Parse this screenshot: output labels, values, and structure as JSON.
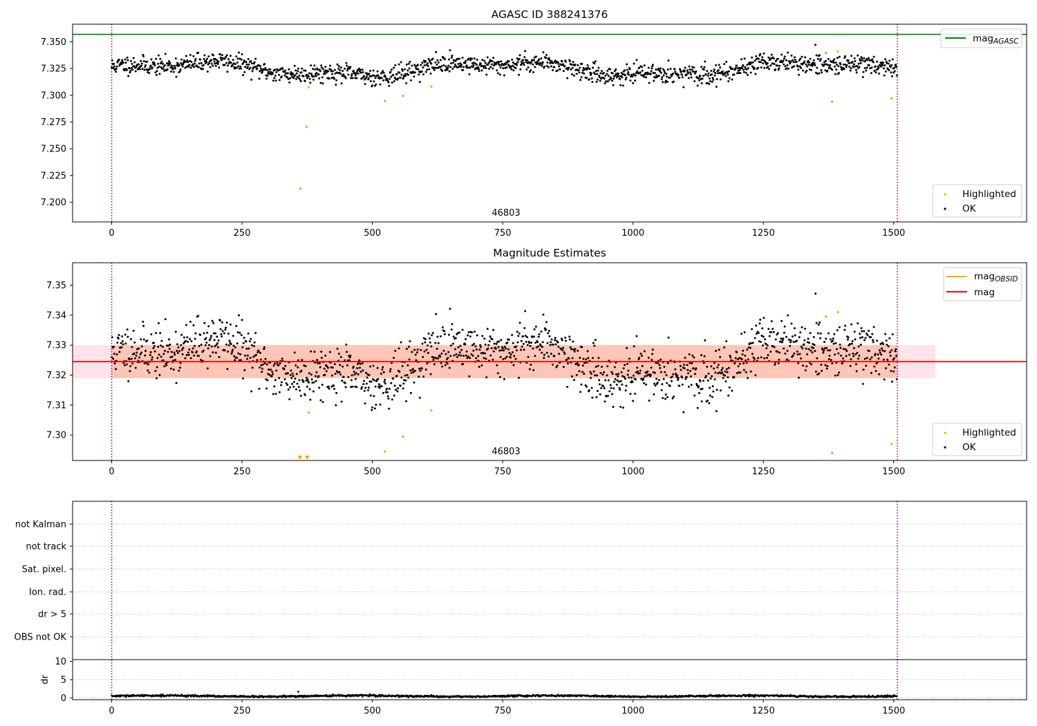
{
  "chart_data": [
    {
      "type": "scatter",
      "title": "AGASC ID 388241376",
      "xlim": [
        -75,
        1755
      ],
      "ylim": [
        7.1815,
        7.3665
      ],
      "xticks": [
        0,
        250,
        500,
        750,
        1000,
        1250,
        1500
      ],
      "yticks": [
        7.2,
        7.225,
        7.25,
        7.275,
        7.3,
        7.325,
        7.35
      ],
      "ytick_labels": [
        "7.200",
        "7.225",
        "7.250",
        "7.275",
        "7.300",
        "7.325",
        "7.350"
      ],
      "hlines": [
        {
          "name": "mag_AGASC",
          "y": 7.357,
          "color": "#008000"
        }
      ],
      "vlines": [
        {
          "x": 0,
          "color": "#800080"
        },
        {
          "x": 1507,
          "color": "#800080"
        }
      ],
      "annotation": {
        "text": "46803",
        "x": 750
      },
      "ok_series": {
        "name": "OK",
        "n": 1507,
        "mean": 7.3245,
        "amp": 0.006,
        "noise": 0.0042,
        "color": "#000000"
      },
      "highlighted": {
        "name": "Highlighted",
        "color": "#ffa500",
        "points": [
          [
            362,
            7.2125
          ],
          [
            374,
            7.2705
          ],
          [
            378,
            7.3075
          ],
          [
            524,
            7.2945
          ],
          [
            559,
            7.2995
          ],
          [
            613,
            7.3082
          ],
          [
            1370,
            7.3395
          ],
          [
            1382,
            7.294
          ],
          [
            1393,
            7.341
          ],
          [
            1496,
            7.297
          ]
        ]
      },
      "legend": {
        "upper": [
          "mag_AGASC"
        ],
        "lower": [
          "Highlighted",
          "OK"
        ]
      }
    },
    {
      "type": "scatter",
      "title": "Magnitude Estimates",
      "xlim": [
        -75,
        1755
      ],
      "ylim": [
        7.2915,
        7.3575
      ],
      "xticks": [
        0,
        250,
        500,
        750,
        1000,
        1250,
        1500
      ],
      "yticks": [
        7.3,
        7.31,
        7.32,
        7.33,
        7.34,
        7.35
      ],
      "ytick_labels": [
        "7.30",
        "7.31",
        "7.32",
        "7.33",
        "7.34",
        "7.35"
      ],
      "hlines": [
        {
          "name": "mag",
          "y": 7.3245,
          "color": "#ff0000"
        }
      ],
      "bands": [
        {
          "y1": 7.319,
          "y2": 7.33,
          "x1": -75,
          "x2": 1580,
          "color": "#ffc0cb",
          "opacity": 0.45
        },
        {
          "y1": 7.319,
          "y2": 7.33,
          "x1": 0,
          "x2": 1507,
          "color": "#ffa07a",
          "opacity": 0.45
        }
      ],
      "obsid_line": {
        "name": "mag_OBSID",
        "y": 7.3245,
        "x1": 0,
        "x2": 1507,
        "color": "#ffa500"
      },
      "vlines": [
        {
          "x": 0,
          "color": "#800080"
        },
        {
          "x": 1507,
          "color": "#800080"
        }
      ],
      "annotation": {
        "text": "46803",
        "x": 750
      },
      "clipped_markers": {
        "points": [
          361,
          375
        ],
        "color": "#ffa500"
      },
      "legend": {
        "upper": [
          "mag_OBSID",
          "mag"
        ],
        "lower": [
          "Highlighted",
          "OK"
        ]
      }
    },
    {
      "type": "table",
      "flag_labels": [
        "not Kalman",
        "not track",
        "Sat. pixel.",
        "Ion. rad.",
        "dr > 5",
        "OBS not OK"
      ],
      "vlines": [
        {
          "x": 0,
          "color": "#800080"
        },
        {
          "x": 1507,
          "color": "#800080"
        }
      ],
      "xlim": [
        -75,
        1755
      ]
    },
    {
      "type": "scatter",
      "ylabel": "dr",
      "xlim": [
        -75,
        1755
      ],
      "ylim": [
        -0.5,
        10.5
      ],
      "xticks": [
        0,
        250,
        500,
        750,
        1000,
        1250,
        1500
      ],
      "yticks": [
        0,
        5,
        10
      ],
      "ytick_labels": [
        "0",
        "5",
        "10"
      ],
      "series": {
        "n": 1507,
        "mean": 0.5,
        "amp": 0.15,
        "noise": 0.12,
        "color": "#000000"
      },
      "outlier": {
        "x": 358,
        "y": 1.7
      },
      "vlines": [
        {
          "x": 0,
          "color": "#800080"
        },
        {
          "x": 1507,
          "color": "#800080"
        }
      ]
    }
  ]
}
